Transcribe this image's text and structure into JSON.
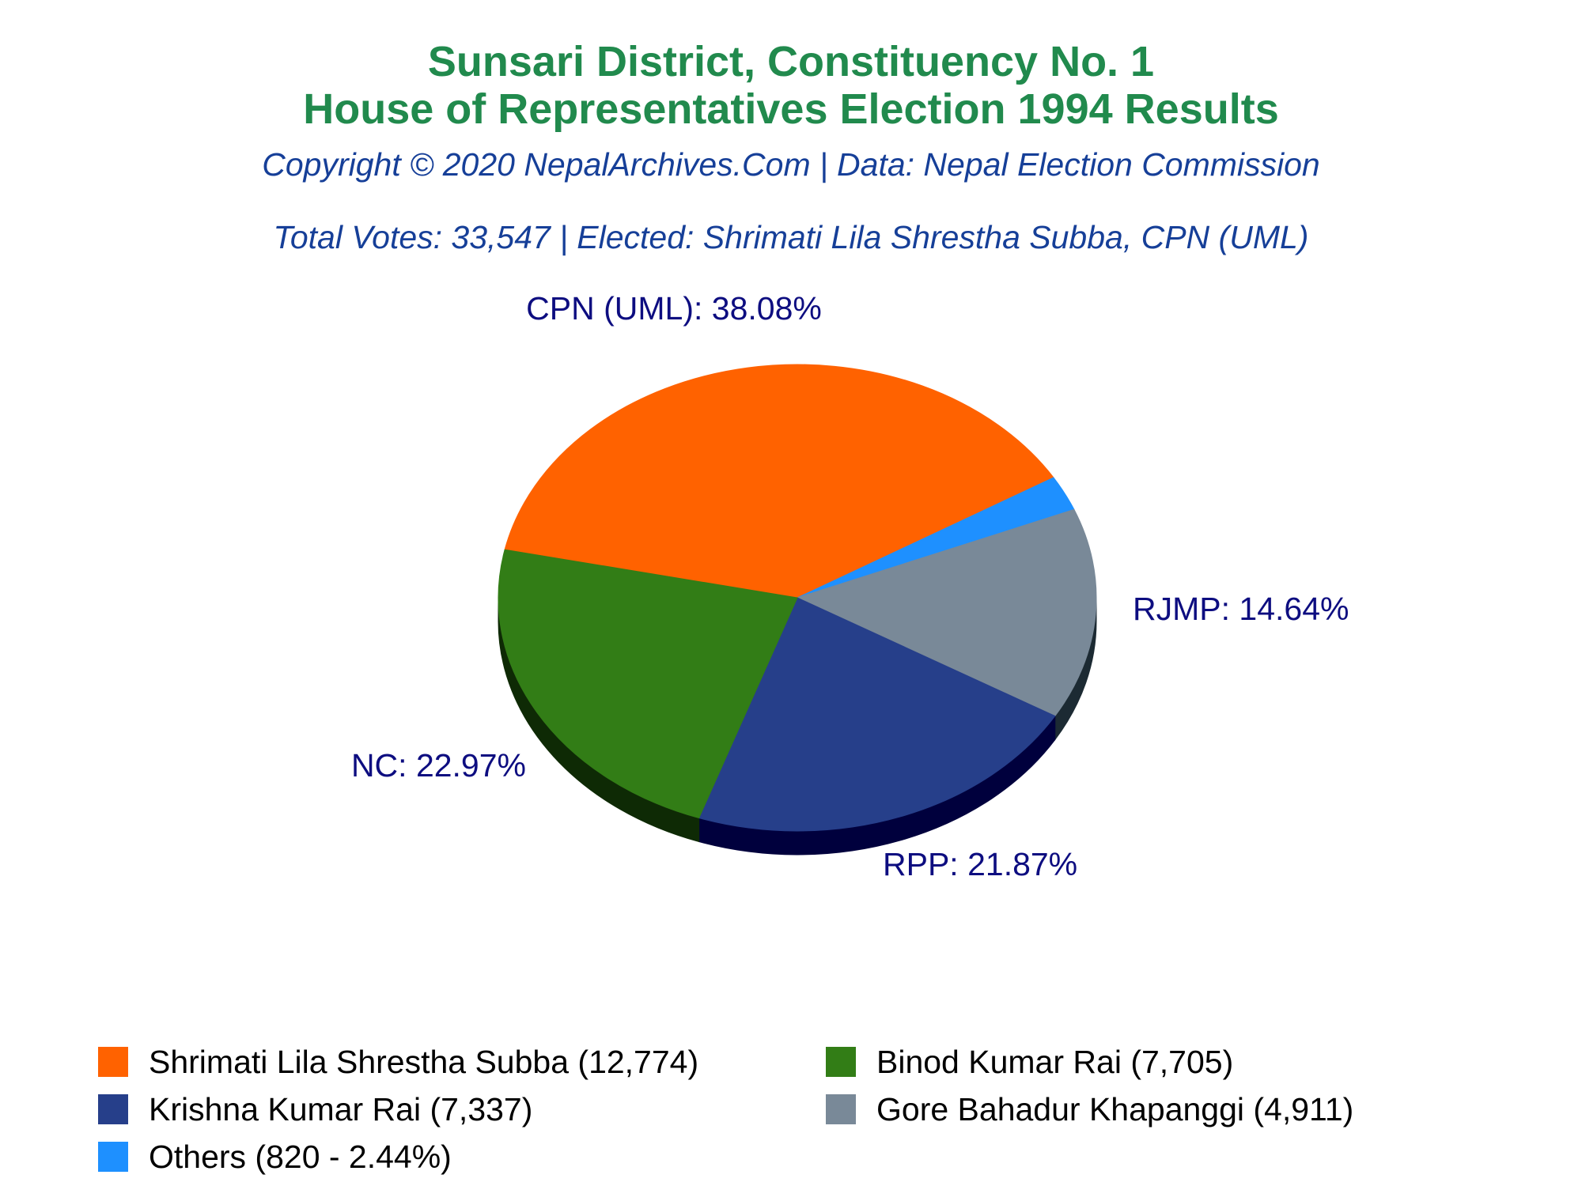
{
  "header": {
    "title_line1": "Sunsari District, Constituency No. 1",
    "title_line2": "House of Representatives Election 1994 Results",
    "copyright": "Copyright © 2020 NepalArchives.Com | Data: Nepal Election Commission",
    "summary": "Total Votes: 33,547 | Elected: Shrimati Lila Shrestha Subba, CPN (UML)"
  },
  "colors": {
    "title": "#218a4d",
    "subtitle": "#163f98",
    "slice_label": "#0d0d80"
  },
  "chart_data": {
    "type": "pie",
    "total_votes": 33547,
    "slices": [
      {
        "party": "CPN (UML)",
        "label": "CPN (UML): 38.08%",
        "candidate": "Shrimati Lila Shrestha Subba",
        "votes": 12774,
        "percent": 38.08,
        "color": "#ff6200",
        "shade": "#8a3500"
      },
      {
        "party": "NC",
        "label": "NC: 22.97%",
        "candidate": "Binod Kumar Rai",
        "votes": 7705,
        "percent": 22.97,
        "color": "#327d16",
        "shade": "#0e2a05"
      },
      {
        "party": "RPP",
        "label": "RPP: 21.87%",
        "candidate": "Krishna Kumar Rai",
        "votes": 7337,
        "percent": 21.87,
        "color": "#263f8a",
        "shade": "#00003d"
      },
      {
        "party": "RJMP",
        "label": "RJMP: 14.64%",
        "candidate": "Gore Bahadur Khapanggi",
        "votes": 4911,
        "percent": 14.64,
        "color": "#798998",
        "shade": "#1c2a33"
      },
      {
        "party": "Others",
        "label": "",
        "candidate": "Others",
        "votes": 820,
        "percent": 2.44,
        "color": "#1e90ff",
        "shade": "#0a4a8a"
      }
    ],
    "legend": [
      {
        "text": "Shrimati Lila Shrestha Subba (12,774)",
        "color": "#ff6200"
      },
      {
        "text": "Binod Kumar Rai (7,705)",
        "color": "#327d16"
      },
      {
        "text": "Krishna Kumar Rai (7,337)",
        "color": "#263f8a"
      },
      {
        "text": "Gore Bahadur Khapanggi (4,911)",
        "color": "#798998"
      },
      {
        "text": "Others (820 - 2.44%)",
        "color": "#1e90ff"
      }
    ]
  }
}
